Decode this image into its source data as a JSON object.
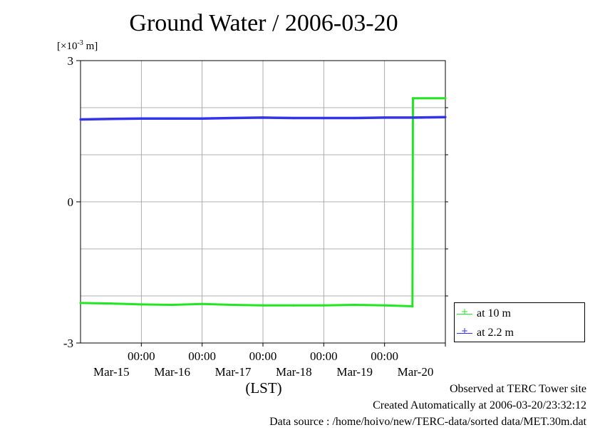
{
  "chart_data": {
    "type": "line",
    "title": "Ground Water / 2006-03-20",
    "unit_label": "[×10",
    "unit_exp": "-3",
    "unit_suffix": " m]",
    "xlabel": "(LST)",
    "xlim_hours": [
      0,
      144
    ],
    "x_unit": "hours since 2006-03-14 12:00",
    "ylim": [
      -3,
      3
    ],
    "yticks": [
      -3,
      0,
      3
    ],
    "grid": true,
    "x_tick_labels": [
      {
        "hour": 24,
        "time": "00:00",
        "date": "Mar-15"
      },
      {
        "hour": 48,
        "time": "00:00",
        "date": "Mar-16"
      },
      {
        "hour": 72,
        "time": "00:00",
        "date": "Mar-17"
      },
      {
        "hour": 96,
        "time": "00:00",
        "date": "Mar-18"
      },
      {
        "hour": 120,
        "time": "00:00",
        "date": "Mar-19"
      },
      {
        "hour": 144,
        "time": "",
        "date": "Mar-20"
      }
    ],
    "series": [
      {
        "name": "at 10 m",
        "color": "#22e622",
        "x": [
          0,
          12,
          24,
          36,
          48,
          60,
          72,
          84,
          96,
          108,
          120,
          131,
          131.2,
          144
        ],
        "y": [
          -2.15,
          -2.16,
          -2.18,
          -2.19,
          -2.17,
          -2.19,
          -2.2,
          -2.2,
          -2.2,
          -2.19,
          -2.2,
          -2.22,
          2.2,
          2.2
        ]
      },
      {
        "name": "at 2.2 m",
        "color": "#3333ee",
        "x": [
          0,
          12,
          24,
          36,
          48,
          60,
          72,
          84,
          96,
          108,
          120,
          132,
          144
        ],
        "y": [
          1.75,
          1.76,
          1.77,
          1.77,
          1.77,
          1.78,
          1.79,
          1.78,
          1.78,
          1.78,
          1.79,
          1.79,
          1.8
        ]
      }
    ]
  },
  "footer": {
    "line1": "Observed at TERC Tower site",
    "line2": "Created Automatically at 2006-03-20/23:32:12",
    "line3": "Data source : /home/hoivo/new/TERC-data/sorted  data/MET.30m.dat"
  }
}
